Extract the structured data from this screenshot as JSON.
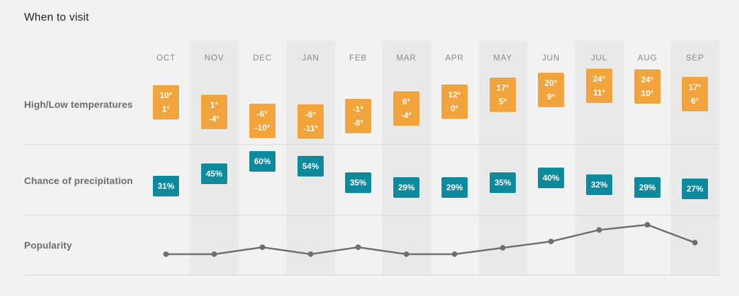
{
  "title": "When to visit",
  "rows": {
    "temperature_label": "High/Low temperatures",
    "precipitation_label": "Chance of precipitation",
    "popularity_label": "Popularity"
  },
  "months": [
    {
      "label": "OCT",
      "high": "10°",
      "low": "1°",
      "precip": "31%",
      "popularity": 32,
      "striped": false
    },
    {
      "label": "NOV",
      "high": "1°",
      "low": "-4°",
      "precip": "45%",
      "popularity": 32,
      "striped": true
    },
    {
      "label": "DEC",
      "high": "-6°",
      "low": "-10°",
      "precip": "60%",
      "popularity": 44,
      "striped": false
    },
    {
      "label": "JAN",
      "high": "-6°",
      "low": "-11°",
      "precip": "54%",
      "popularity": 32,
      "striped": true
    },
    {
      "label": "FEB",
      "high": "-1°",
      "low": "-8°",
      "precip": "35%",
      "popularity": 44,
      "striped": false
    },
    {
      "label": "MAR",
      "high": "6°",
      "low": "-4°",
      "precip": "29%",
      "popularity": 32,
      "striped": true
    },
    {
      "label": "APR",
      "high": "12°",
      "low": "0°",
      "precip": "29%",
      "popularity": 32,
      "striped": false
    },
    {
      "label": "MAY",
      "high": "17°",
      "low": "5°",
      "precip": "35%",
      "popularity": 43,
      "striped": true
    },
    {
      "label": "JUN",
      "high": "20°",
      "low": "9°",
      "precip": "40%",
      "popularity": 54,
      "striped": false
    },
    {
      "label": "JUL",
      "high": "24°",
      "low": "11°",
      "precip": "32%",
      "popularity": 74,
      "striped": true
    },
    {
      "label": "AUG",
      "high": "24°",
      "low": "10°",
      "precip": "29%",
      "popularity": 83,
      "striped": false
    },
    {
      "label": "SEP",
      "high": "17°",
      "low": "6°",
      "precip": "27%",
      "popularity": 52,
      "striped": true
    }
  ],
  "chart_data": {
    "type": "table",
    "title": "When to visit",
    "categories": [
      "OCT",
      "NOV",
      "DEC",
      "JAN",
      "FEB",
      "MAR",
      "APR",
      "MAY",
      "JUN",
      "JUL",
      "AUG",
      "SEP"
    ],
    "series": [
      {
        "name": "High temperature (°)",
        "values": [
          10,
          1,
          -6,
          -6,
          -1,
          6,
          12,
          17,
          20,
          24,
          24,
          17
        ]
      },
      {
        "name": "Low temperature (°)",
        "values": [
          1,
          -4,
          -10,
          -11,
          -8,
          -4,
          0,
          5,
          9,
          11,
          10,
          6
        ]
      },
      {
        "name": "Chance of precipitation (%)",
        "values": [
          31,
          45,
          60,
          54,
          35,
          29,
          29,
          35,
          40,
          32,
          29,
          27
        ]
      },
      {
        "name": "Popularity (relative 0-100, estimated from line)",
        "values": [
          32,
          32,
          44,
          32,
          44,
          32,
          32,
          43,
          54,
          74,
          83,
          52
        ]
      }
    ],
    "legend_position": "none",
    "grid": "off",
    "layout": "three stacked rows: temperature boxes, precipitation boxes, popularity line"
  },
  "colors": {
    "background": "#F2F2F2",
    "column_stripe": "#E9E9E9",
    "temperature_box": "#F1A43C",
    "precipitation_box": "#0E8A9E",
    "popularity_line": "#6E6E6E",
    "divider": "#D9D9D9",
    "month_label": "#85888C",
    "row_label": "#6A6D70",
    "title": "#212121",
    "box_text": "#FFFFFF"
  }
}
